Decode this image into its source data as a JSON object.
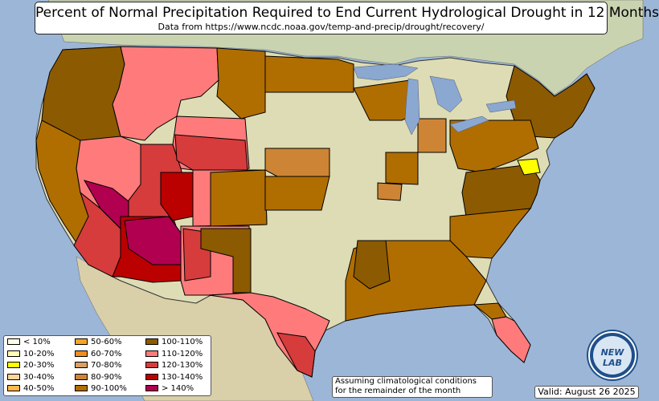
{
  "title": "Percent of Normal Precipitation Required to End Current Hydrological Drought in 12 Months",
  "subtitle": "Data from https://www.ncdc.noaa.gov/temp-and-precip/drought/recovery/",
  "legend": [
    {
      "label": "< 10%",
      "color": "#fffbe6"
    },
    {
      "label": "10-20%",
      "color": "#ffffb3"
    },
    {
      "label": "20-30%",
      "color": "#ffff00"
    },
    {
      "label": "30-40%",
      "color": "#ffd699"
    },
    {
      "label": "40-50%",
      "color": "#ffb84d"
    },
    {
      "label": "50-60%",
      "color": "#f5a623"
    },
    {
      "label": "60-70%",
      "color": "#f28c1e"
    },
    {
      "label": "70-80%",
      "color": "#d9a066"
    },
    {
      "label": "80-90%",
      "color": "#cd8535"
    },
    {
      "label": "90-100%",
      "color": "#b06e00"
    },
    {
      "label": "100-110%",
      "color": "#8c5a00"
    },
    {
      "label": "110-120%",
      "color": "#ff7b7b"
    },
    {
      "label": "120-130%",
      "color": "#d63c3c"
    },
    {
      "label": "130-140%",
      "color": "#bb0000"
    },
    {
      "label": "> 140%",
      "color": "#b0004f"
    }
  ],
  "note": {
    "line1": "Assuming climatological conditions",
    "line2": "for the remainder of the month"
  },
  "valid": "Valid: August 26 2025",
  "logo_text": "NEW LAB",
  "colors": {
    "ocean": "#9cb6d8",
    "land": "#dedcb4",
    "lake": "#8aa8d0",
    "mexico": "#d9cfa8",
    "canada": "#c9d3b0"
  }
}
